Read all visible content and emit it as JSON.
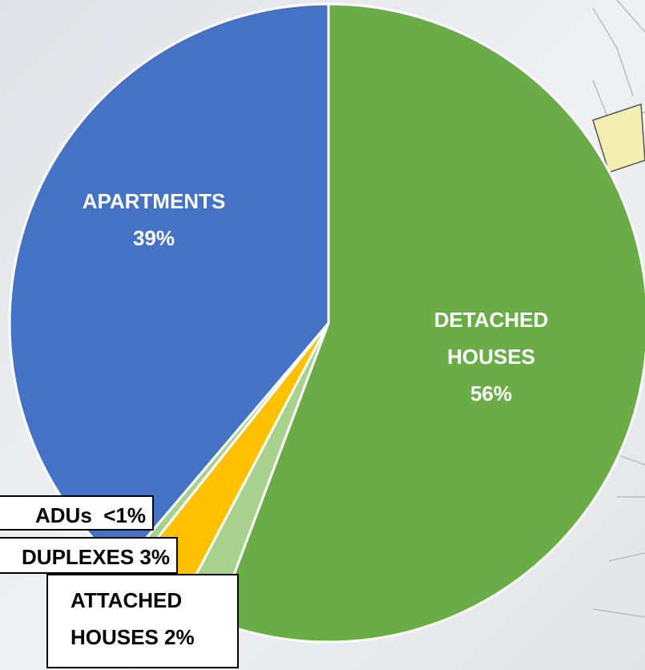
{
  "chart_data": {
    "type": "pie",
    "categories": [
      "DETACHED HOUSES",
      "ATTACHED HOUSES",
      "DUPLEXES",
      "ADUs",
      "APARTMENTS"
    ],
    "values": [
      56,
      2,
      3,
      0.5,
      39
    ],
    "value_labels": [
      "56%",
      "2%",
      "3%",
      "<1%",
      "39%"
    ],
    "colors": [
      "#6aad46",
      "#a9d18e",
      "#ffc000",
      "#a9d18e",
      "#4472c4"
    ]
  }
}
